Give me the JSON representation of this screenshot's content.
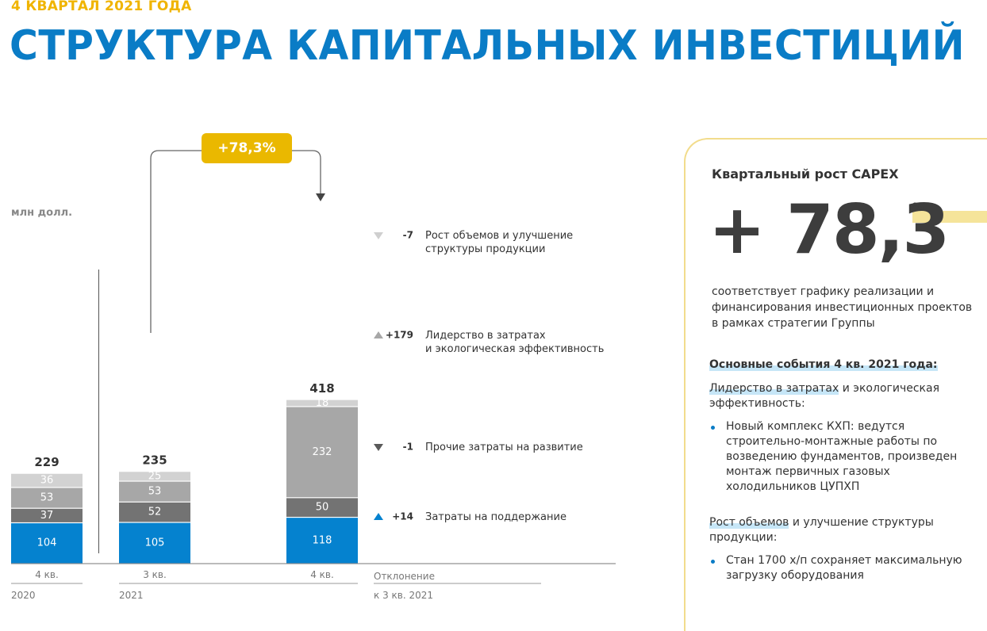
{
  "header": {
    "eyebrow": "4 КВАРТАЛ 2021 ГОДА",
    "title": "СТРУКТУРА КАПИТАЛЬНЫХ ИНВЕСТИЦИЙ"
  },
  "chart_data": {
    "type": "bar",
    "stacked": true,
    "unit_label": "млн долл.",
    "categories": [
      "4 кв.",
      "3 кв.",
      "4 кв."
    ],
    "category_years": [
      "2020",
      "2021"
    ],
    "totals": [
      229,
      235,
      418
    ],
    "series": [
      {
        "name": "Затраты на поддержание",
        "values": [
          104,
          105,
          118
        ],
        "color": "#0582cf"
      },
      {
        "name": "Прочие затраты на развитие",
        "values": [
          37,
          52,
          50
        ],
        "color": "#737373"
      },
      {
        "name": "Лидерство в затратах и экологическая эффективность",
        "values": [
          53,
          53,
          232
        ],
        "color": "#a7a7a7"
      },
      {
        "name": "Рост объемов и улучшение структуры продукции",
        "values": [
          36,
          25,
          18
        ],
        "color": "#d2d2d2"
      }
    ],
    "growth_label": "+78,3%",
    "deviation_header": [
      "Отклонение",
      "к 3 кв. 2021"
    ],
    "deviations": [
      {
        "value": "-7",
        "direction": "down",
        "label_lines": [
          "Рост объемов и улучшение",
          "структуры продукции"
        ],
        "color": "#cfcfcf"
      },
      {
        "value": "+179",
        "direction": "up",
        "label_lines": [
          "Лидерство в затратах",
          "и экологическая эффективность"
        ],
        "color": "#a7a7a7"
      },
      {
        "value": "-1",
        "direction": "down",
        "label_lines": [
          "Прочие затраты на развитие"
        ],
        "color": "#5a5a5a"
      },
      {
        "value": "+14",
        "direction": "up",
        "label_lines": [
          "Затраты на поддержание"
        ],
        "color": "#0582cf"
      }
    ]
  },
  "panel": {
    "title": "Квартальный рост CAPEX",
    "big_value": "+ 78,3",
    "big_unit": "%",
    "description": "соответствует графику реализации и финансирования инвестиционных проектов в рамках стратегии Группы",
    "events_title": "Основные события 4 кв. 2021 года:",
    "categories": [
      {
        "heading_highlight": "Лидерство в затратах",
        "heading_rest": " и экологическая эффективность:",
        "bullet": "Новый комплекс КХП: ведутся строительно-монтажные работы по возведению фундаментов, произведен монтаж первичных газовых холодильников ЦУПХП"
      },
      {
        "heading_highlight": "Рост объемов",
        "heading_rest": " и улучшение структуры продукции:",
        "bullet": "Стан 1700 х/п сохраняет максимальную загрузку оборудования"
      }
    ]
  }
}
